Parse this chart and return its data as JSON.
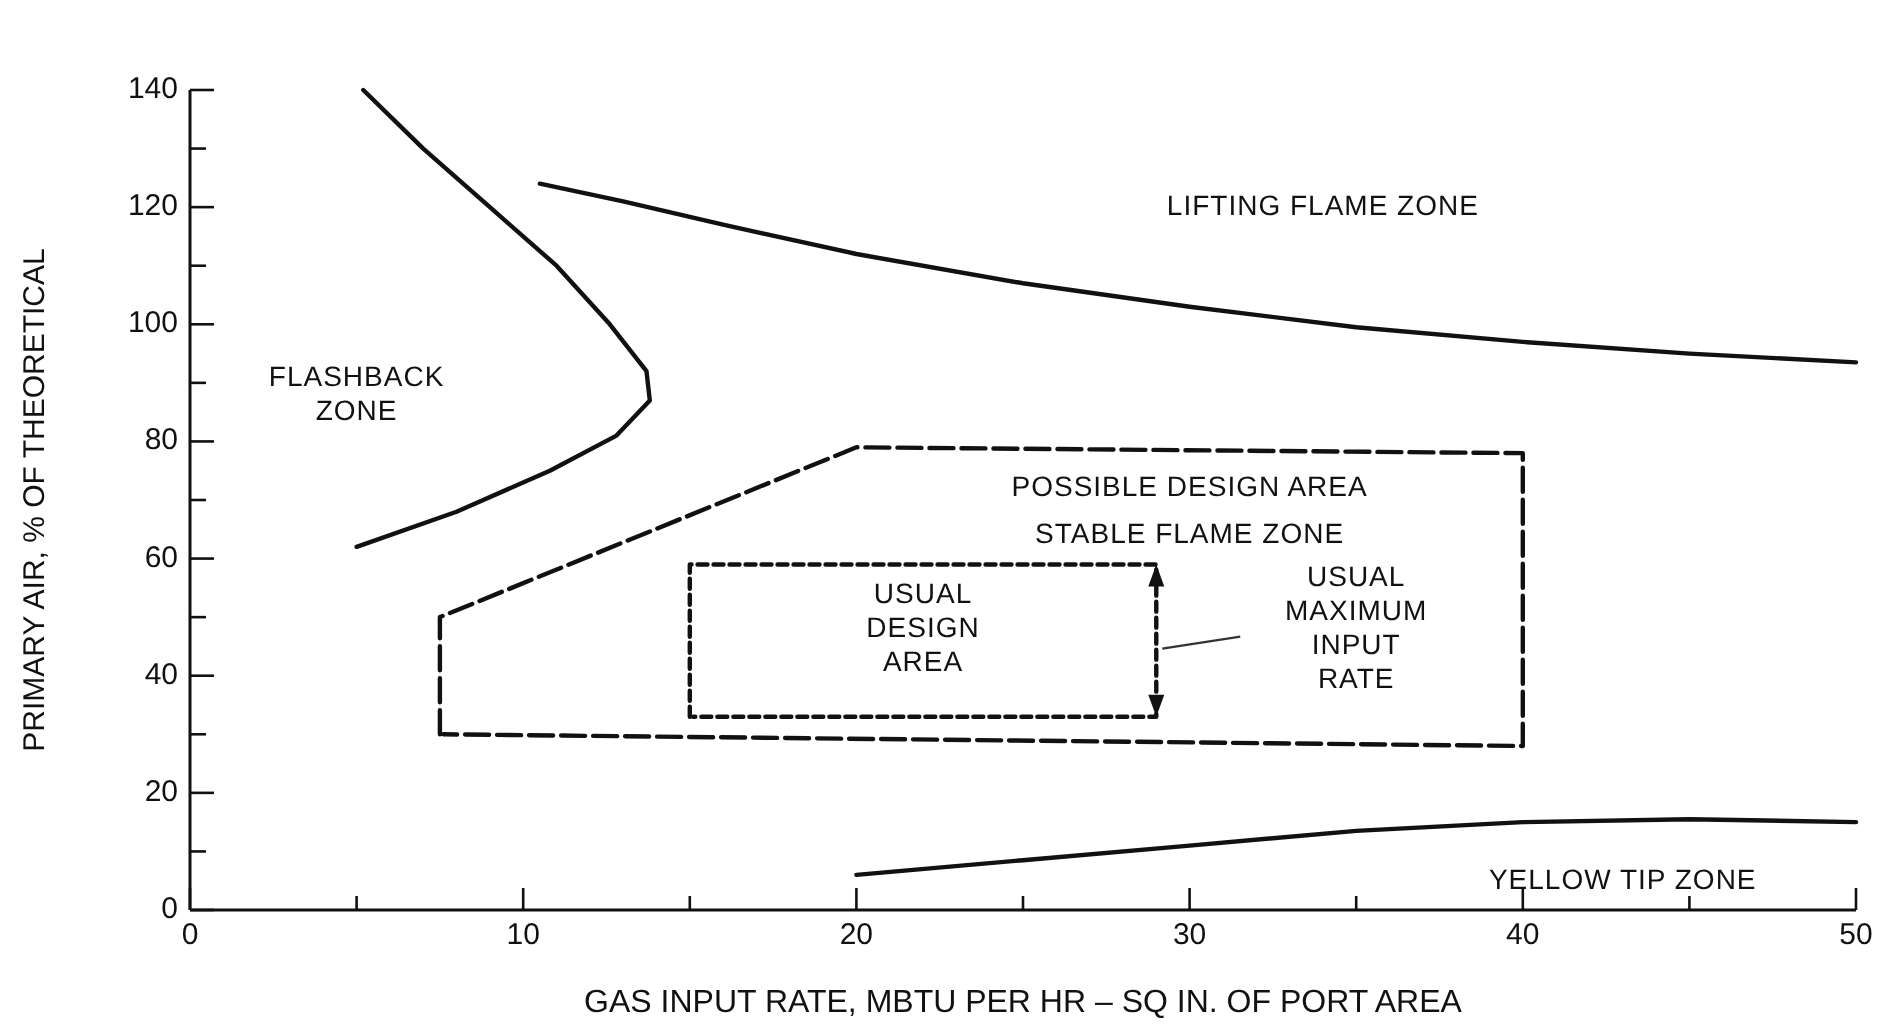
{
  "chart_data": {
    "type": "line",
    "xlabel": "GAS INPUT RATE, MBTU PER HR – SQ IN. OF PORT AREA",
    "ylabel": "PRIMARY AIR, % OF THEORETICAL",
    "xlim": [
      0,
      50
    ],
    "ylim": [
      0,
      140
    ],
    "xticks": [
      0,
      {
        "value": 5,
        "label": null
      },
      10,
      {
        "value": 15,
        "label": null
      },
      20,
      {
        "value": 25,
        "label": null
      },
      30,
      {
        "value": 35,
        "label": null
      },
      40,
      {
        "value": 45,
        "label": null
      },
      50
    ],
    "yticks": [
      0,
      {
        "value": 10,
        "label": null
      },
      20,
      {
        "value": 30,
        "label": null
      },
      40,
      {
        "value": 50,
        "label": null
      },
      60,
      {
        "value": 70,
        "label": null
      },
      80,
      {
        "value": 90,
        "label": null
      },
      100,
      {
        "value": 110,
        "label": null
      },
      120,
      {
        "value": 130,
        "label": null
      },
      140
    ],
    "grid": false,
    "marker": "none",
    "series": [
      {
        "color": "#111111",
        "line_style": "solid",
        "x": [
          5.2,
          7,
          9,
          11,
          12.6,
          13.7,
          13.8,
          12.8,
          10.8,
          8,
          5
        ],
        "values": [
          140,
          130,
          120,
          110,
          100,
          92,
          87,
          81,
          75,
          68,
          62
        ]
      },
      {
        "color": "#111111",
        "line_style": "solid",
        "x": [
          10.5,
          13,
          16,
          20,
          25,
          30,
          35,
          40,
          45,
          50
        ],
        "values": [
          124,
          121,
          117,
          112,
          107,
          103,
          99.5,
          97,
          95,
          93.5
        ]
      },
      {
        "color": "#111111",
        "line_style": "solid",
        "x": [
          20,
          25,
          30,
          35,
          40,
          45,
          50
        ],
        "values": [
          6,
          8.5,
          11,
          13.5,
          15,
          15.5,
          15
        ]
      },
      {
        "color": "#111111",
        "line_style": "dashed",
        "x": [
          7.5,
          7.5,
          20,
          40,
          40,
          7.6
        ],
        "values": [
          30,
          50,
          79,
          78,
          28,
          30
        ]
      },
      {
        "color": "#111111",
        "line_style": "dotted",
        "x": [
          15,
          15,
          29,
          29,
          15.1
        ],
        "values": [
          33,
          59,
          59,
          33,
          33
        ]
      }
    ],
    "annotations": [
      "LIFTING FLAME ZONE",
      "FLASHBACK\nZONE",
      "POSSIBLE DESIGN AREA",
      "STABLE FLAME ZONE",
      "USUAL\nDESIGN\nAREA",
      "USUAL\nMAXIMUM\nINPUT\nRATE",
      "YELLOW TIP ZONE"
    ]
  }
}
